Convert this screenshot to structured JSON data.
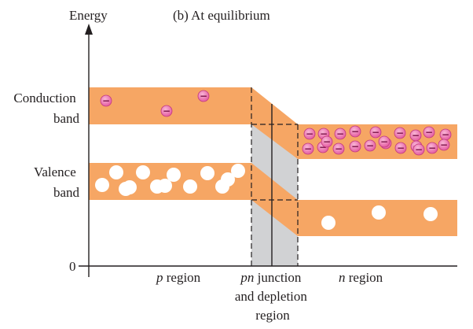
{
  "title": "(b) At equilibrium",
  "axis": {
    "y_label": "Energy",
    "zero_label": "0"
  },
  "bands": {
    "conduction_label_line1": "Conduction",
    "conduction_label_line2": "band",
    "valence_label_line1": "Valence",
    "valence_label_line2": "band"
  },
  "regions": {
    "p_prefix": "p",
    "p_suffix": " region",
    "pn_prefix": "pn",
    "pn_suffix": " junction",
    "pn_line2": "and depletion",
    "pn_line3": "region",
    "n_prefix": "n",
    "n_suffix": " region"
  },
  "carriers": {
    "electron_symbol": "−",
    "p_conduction_electrons": 3,
    "n_conduction_electrons": 22,
    "p_valence_holes": 13,
    "n_valence_holes": 3
  },
  "colors": {
    "band": "#f6a664",
    "depletion": "#d1d2d4",
    "electron": "#e3579e",
    "hole": "#ffffff",
    "axis": "#231f20"
  }
}
